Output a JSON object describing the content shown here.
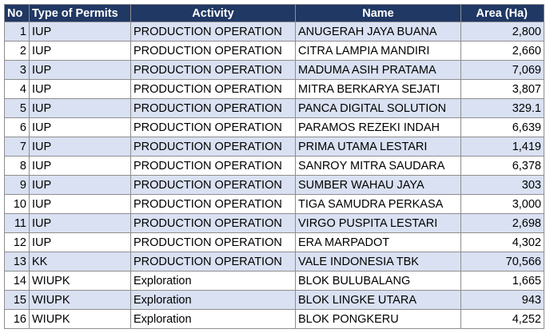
{
  "headers": {
    "no": "No",
    "type": "Type of Permits",
    "activity": "Activity",
    "name": "Name",
    "area": "Area (Ha)"
  },
  "rows": [
    {
      "no": "1",
      "type": "IUP",
      "activity": "PRODUCTION OPERATION",
      "name": "ANUGERAH JAYA BUANA",
      "area": "2,800"
    },
    {
      "no": "2",
      "type": "IUP",
      "activity": "PRODUCTION OPERATION",
      "name": "CITRA LAMPIA MANDIRI",
      "area": "2,660"
    },
    {
      "no": "3",
      "type": "IUP",
      "activity": "PRODUCTION OPERATION",
      "name": "MADUMA ASIH PRATAMA",
      "area": "7,069"
    },
    {
      "no": "4",
      "type": "IUP",
      "activity": "PRODUCTION OPERATION",
      "name": "MITRA BERKARYA SEJATI",
      "area": "3,807"
    },
    {
      "no": "5",
      "type": "IUP",
      "activity": "PRODUCTION OPERATION",
      "name": "PANCA DIGITAL SOLUTION",
      "area": "329.1"
    },
    {
      "no": "6",
      "type": "IUP",
      "activity": "PRODUCTION OPERATION",
      "name": "PARAMOS REZEKI INDAH",
      "area": "6,639"
    },
    {
      "no": "7",
      "type": "IUP",
      "activity": "PRODUCTION OPERATION",
      "name": "PRIMA UTAMA LESTARI",
      "area": "1,419"
    },
    {
      "no": "8",
      "type": "IUP",
      "activity": "PRODUCTION OPERATION",
      "name": "SANROY MITRA SAUDARA",
      "area": "6,378"
    },
    {
      "no": "9",
      "type": "IUP",
      "activity": "PRODUCTION OPERATION",
      "name": "SUMBER WAHAU JAYA",
      "area": "303"
    },
    {
      "no": "10",
      "type": "IUP",
      "activity": "PRODUCTION OPERATION",
      "name": "TIGA SAMUDRA PERKASA",
      "area": "3,000"
    },
    {
      "no": "11",
      "type": "IUP",
      "activity": "PRODUCTION OPERATION",
      "name": "VIRGO PUSPITA LESTARI",
      "area": "2,698"
    },
    {
      "no": "12",
      "type": "IUP",
      "activity": "PRODUCTION OPERATION",
      "name": "ERA MARPADOT",
      "area": "4,302"
    },
    {
      "no": "13",
      "type": "KK",
      "activity": "PRODUCTION OPERATION",
      "name": "VALE INDONESIA TBK",
      "area": "70,566"
    },
    {
      "no": "14",
      "type": "WIUPK",
      "activity": "Exploration",
      "name": "BLOK BULUBALANG",
      "area": "1,665"
    },
    {
      "no": "15",
      "type": "WIUPK",
      "activity": "Exploration",
      "name": "BLOK LINGKE UTARA",
      "area": "943"
    },
    {
      "no": "16",
      "type": "WIUPK",
      "activity": "Exploration",
      "name": "BLOK PONGKERU",
      "area": "4,252"
    }
  ],
  "colors": {
    "header_bg": "#203864",
    "header_text": "#ffffff",
    "band_bg": "#d9e1f2",
    "plain_bg": "#ffffff",
    "grid": "#8e8e8e"
  }
}
